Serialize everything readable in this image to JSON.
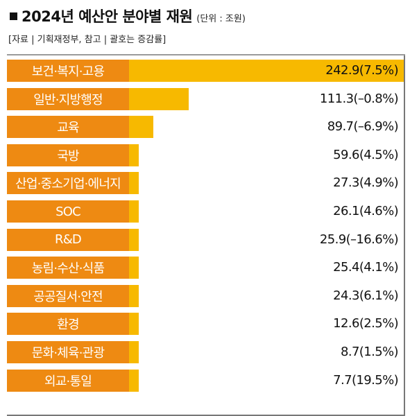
{
  "header": {
    "title": "2024년 예산안 분야별 재원",
    "unit": "(단위 : 조원)",
    "source": "[자료 | 기획재정부, 참고 | 괄호는 증감률]"
  },
  "colors": {
    "bar": "#f7b900",
    "label_box": "#ee8a12",
    "label_text": "#ffffff"
  },
  "chart_data": {
    "type": "bar",
    "orientation": "horizontal",
    "title": "2024년 예산안 분야별 재원",
    "unit": "(단위 : 조원)",
    "categories": [
      "보건·복지·고용",
      "일반·지방행정",
      "교육",
      "국방",
      "산업·중소기업·에너지",
      "SOC",
      "R&D",
      "농림·수산·식품",
      "공공질서·안전",
      "환경",
      "문화·체육·관광",
      "외교·통일"
    ],
    "values": [
      242.9,
      111.3,
      89.7,
      59.6,
      27.3,
      26.1,
      25.9,
      25.4,
      24.3,
      12.6,
      8.7,
      7.7
    ],
    "value_labels": [
      "242.9(7.5%)",
      "111.3(–0.8%)",
      "89.7(–6.9%)",
      "59.6(4.5%)",
      "27.3(4.9%)",
      "26.1(4.6%)",
      "25.9(–16.6%)",
      "25.4(4.1%)",
      "24.3(6.1%)",
      "12.6(2.5%)",
      "8.7(1.5%)",
      "7.7(19.5%)"
    ],
    "change_pct": [
      7.5,
      -0.8,
      -6.9,
      4.5,
      4.9,
      4.6,
      -16.6,
      4.1,
      6.1,
      2.5,
      1.5,
      19.5
    ]
  }
}
